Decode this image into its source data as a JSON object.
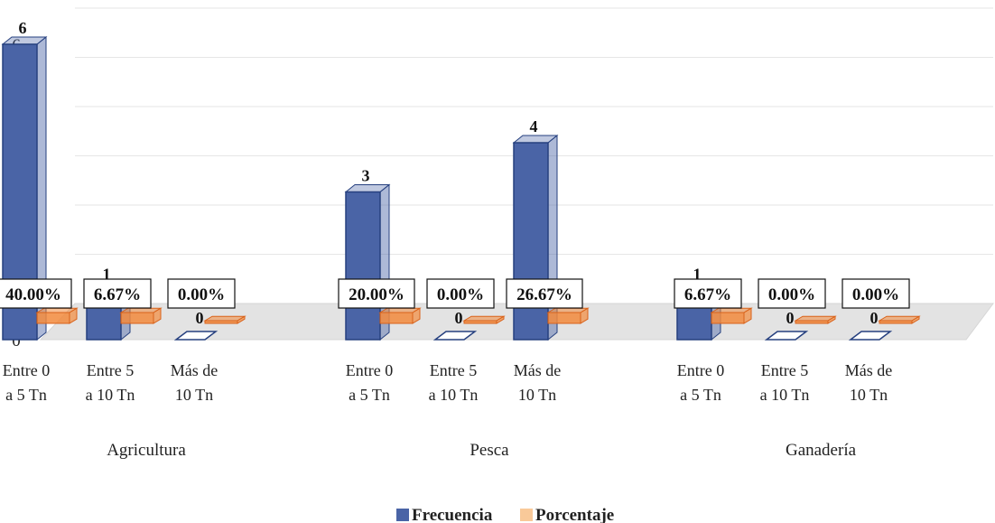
{
  "chart_data": {
    "type": "bar",
    "groups": [
      {
        "label": "Agricultura",
        "categories": [
          "Entre 0\na 5 Tn",
          "Entre 5\na 10 Tn",
          "Más de\n10 Tn"
        ],
        "frecuencia": [
          6,
          1,
          0
        ],
        "porcentaje": [
          40.0,
          6.67,
          0.0
        ],
        "porcentaje_labels": [
          "40.00%",
          "6.67%",
          "0.00%"
        ]
      },
      {
        "label": "Pesca",
        "categories": [
          "Entre 0\na 5 Tn",
          "Entre 5\na 10 Tn",
          "Más de\n10 Tn"
        ],
        "frecuencia": [
          3,
          0,
          4
        ],
        "porcentaje": [
          20.0,
          0.0,
          26.67
        ],
        "porcentaje_labels": [
          "20.00%",
          "0.00%",
          "26.67%"
        ]
      },
      {
        "label": "Ganadería",
        "categories": [
          "Entre 0\na 5 Tn",
          "Entre 5\na 10 Tn",
          "Más de\n10 Tn"
        ],
        "frecuencia": [
          1,
          0,
          0
        ],
        "porcentaje": [
          6.67,
          0.0,
          0.0
        ],
        "porcentaje_labels": [
          "6.67%",
          "0.00%",
          "0.00%"
        ]
      }
    ],
    "series": [
      {
        "name": "Frecuencia",
        "color": "#4a64a6"
      },
      {
        "name": "Porcentaje",
        "color": "#f28a3c"
      }
    ],
    "yticks": [
      0,
      1,
      2,
      3,
      4,
      5,
      6
    ],
    "ylim": [
      0,
      6.4
    ],
    "grid": true,
    "legend": "bottom",
    "three_d": true
  }
}
